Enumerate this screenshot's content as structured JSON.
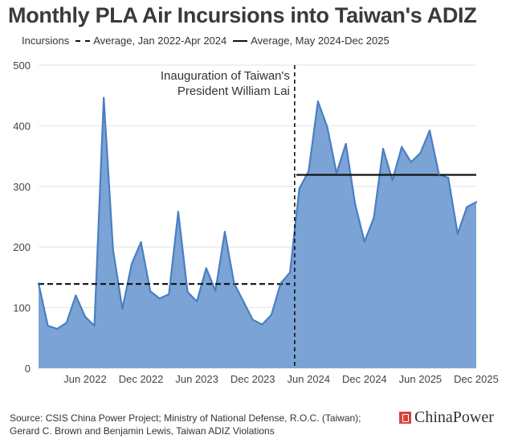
{
  "chart_data": {
    "type": "area",
    "title": "Monthly PLA Air Incursions into Taiwan's ADIZ",
    "xlabel": "",
    "ylabel": "",
    "ylim": [
      0,
      500
    ],
    "yticks": [
      "0",
      "100",
      "200",
      "300",
      "400",
      "500"
    ],
    "xticks": [
      {
        "label": "Jun 2022",
        "month": "2022-06"
      },
      {
        "label": "Dec 2022",
        "month": "2022-12"
      },
      {
        "label": "Jun 2023",
        "month": "2023-06"
      },
      {
        "label": "Dec 2023",
        "month": "2023-12"
      },
      {
        "label": "Jun 2024",
        "month": "2024-06"
      },
      {
        "label": "Dec 2024",
        "month": "2024-12"
      },
      {
        "label": "Jun 2025",
        "month": "2025-06"
      },
      {
        "label": "Dec 2025",
        "month": "2025-12"
      }
    ],
    "grid": true,
    "legend_position": "top-left",
    "series": [
      {
        "name": "Incursions",
        "color": "#4a7fc1",
        "fill": "#7ba3d6",
        "x": [
          "2022-01",
          "2022-02",
          "2022-03",
          "2022-04",
          "2022-05",
          "2022-06",
          "2022-07",
          "2022-08",
          "2022-09",
          "2022-10",
          "2022-11",
          "2022-12",
          "2023-01",
          "2023-02",
          "2023-03",
          "2023-04",
          "2023-05",
          "2023-06",
          "2023-07",
          "2023-08",
          "2023-09",
          "2023-10",
          "2023-11",
          "2023-12",
          "2024-01",
          "2024-02",
          "2024-03",
          "2024-04",
          "2024-05",
          "2024-06",
          "2024-07",
          "2024-08",
          "2024-09",
          "2024-10",
          "2024-11",
          "2024-12",
          "2025-01",
          "2025-02",
          "2025-03",
          "2025-04",
          "2025-05",
          "2025-06",
          "2025-07",
          "2025-08",
          "2025-09",
          "2025-10",
          "2025-11",
          "2025-12"
        ],
        "values": [
          140,
          70,
          65,
          75,
          120,
          85,
          70,
          446,
          195,
          98,
          172,
          208,
          127,
          115,
          122,
          258,
          126,
          110,
          165,
          128,
          225,
          140,
          110,
          80,
          72,
          88,
          140,
          158,
          296,
          325,
          440,
          398,
          322,
          370,
          270,
          209,
          248,
          362,
          310,
          365,
          340,
          355,
          392,
          320,
          314,
          222,
          266,
          274
        ]
      },
      {
        "name": "Average, Jan 2022-Apr 2024",
        "style": "dashed",
        "color": "#111111",
        "x_range": [
          "2022-01",
          "2024-04"
        ],
        "value": 139
      },
      {
        "name": "Average, May 2024-Dec 2025",
        "style": "solid",
        "color": "#111111",
        "x_range": [
          "2024-04",
          "2025-12"
        ],
        "value": 319
      }
    ],
    "annotations": [
      {
        "text": [
          "Inauguration of Taiwan's",
          "President William Lai"
        ],
        "month": "2024-05",
        "style": "dashed-vertical"
      }
    ]
  },
  "source": "Source: CSIS China Power Project; Ministry of National Defense, R.O.C. (Taiwan); Gerard C. Brown and Benjamin Lewis, Taiwan ADIZ Violations",
  "brand": "ChinaPower"
}
